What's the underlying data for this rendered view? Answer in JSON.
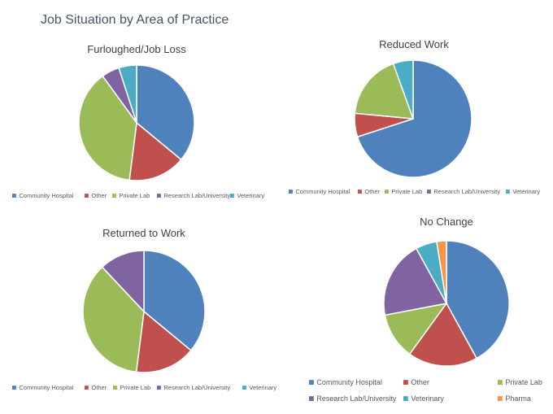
{
  "page_title": "Job Situation by Area of Practice",
  "chart_data": [
    {
      "type": "pie",
      "title": "Furloughed/Job Loss",
      "categories": [
        "Community Hospital",
        "Other",
        "Private Lab",
        "Research Lab/University",
        "Veterinary"
      ],
      "values": [
        36,
        16,
        38,
        5,
        5
      ]
    },
    {
      "type": "pie",
      "title": "Reduced Work",
      "categories": [
        "Community Hospital",
        "Other",
        "Private Lab",
        "Research Lab/University",
        "Veterinary"
      ],
      "values": [
        70,
        6.5,
        18,
        0,
        5.5
      ]
    },
    {
      "type": "pie",
      "title": "Returned to Work",
      "categories": [
        "Community Hospital",
        "Other",
        "Private Lab",
        "Research Lab/University",
        "Veterinary"
      ],
      "values": [
        36,
        16,
        36,
        12,
        0
      ]
    },
    {
      "type": "pie",
      "title": "No Change",
      "categories": [
        "Community Hospital",
        "Other",
        "Private Lab",
        "Research Lab/University",
        "Veterinary",
        "Pharma"
      ],
      "values": [
        42,
        18,
        12,
        20,
        5.5,
        2.5
      ]
    }
  ],
  "colors": {
    "Community Hospital": "#4f81bd",
    "Other": "#c0504d",
    "Private Lab": "#9bbb59",
    "Research Lab/University": "#8064a2",
    "Veterinary": "#4bacc6",
    "Pharma": "#f79646"
  }
}
